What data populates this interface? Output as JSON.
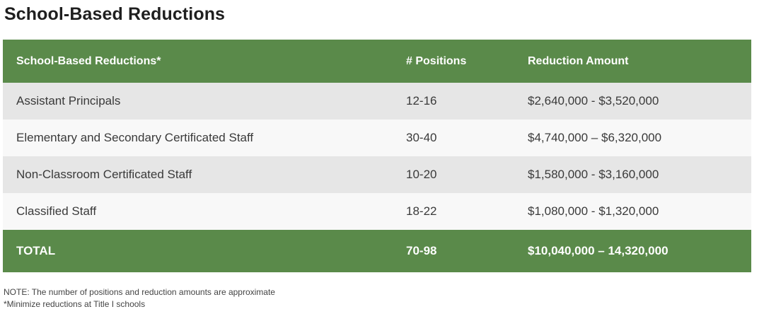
{
  "title": "School-Based Reductions",
  "table": {
    "headers": [
      "School-Based Reductions*",
      "# Positions",
      "Reduction Amount"
    ],
    "rows": [
      {
        "label": "Assistant Principals",
        "positions": "12-16",
        "amount": "$2,640,000 - $3,520,000"
      },
      {
        "label": "Elementary and Secondary Certificated Staff",
        "positions": "30-40",
        "amount": "$4,740,000 – $6,320,000"
      },
      {
        "label": "Non-Classroom Certificated Staff",
        "positions": "10-20",
        "amount": "$1,580,000 - $3,160,000"
      },
      {
        "label": "Classified Staff",
        "positions": "18-22",
        "amount": "$1,080,000 - $1,320,000"
      }
    ],
    "total": {
      "label": "TOTAL",
      "positions": "70-98",
      "amount": "$10,040,000 – 14,320,000"
    }
  },
  "notes": [
    "NOTE: The number of positions and reduction amounts are approximate",
    "*Minimize reductions at Title I schools"
  ],
  "colors": {
    "header_bg": "#5a8a4a",
    "row_odd_bg": "#e6e6e6",
    "row_even_bg": "#f8f8f8",
    "header_text": "#ffffff"
  }
}
